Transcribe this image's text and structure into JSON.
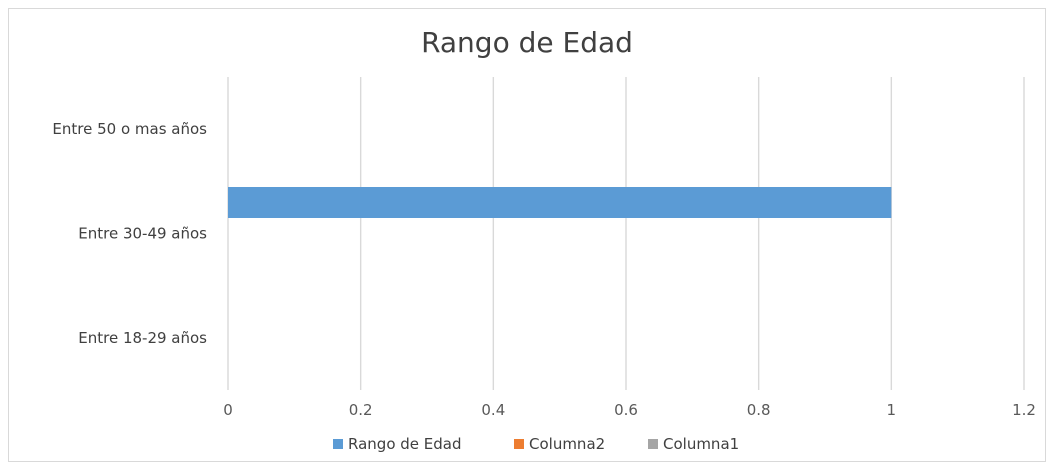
{
  "chart_data": {
    "type": "bar",
    "orientation": "horizontal",
    "title": "Rango de Edad",
    "categories": [
      "Entre 18-29 años",
      "Entre 30-49 años",
      "Entre 50 o mas años"
    ],
    "series": [
      {
        "name": "Rango de Edad",
        "values": [
          0,
          1,
          0
        ],
        "color": "#5b9bd5"
      },
      {
        "name": "Columna2",
        "values": [
          0,
          0,
          0
        ],
        "color": "#ed7d31"
      },
      {
        "name": "Columna1",
        "values": [
          0,
          0,
          0
        ],
        "color": "#a5a5a5"
      }
    ],
    "xticks": [
      "0",
      "0.2",
      "0.4",
      "0.6",
      "0.8",
      "1",
      "1.2"
    ],
    "xlim": [
      0,
      1.2
    ],
    "grid": true,
    "legend_position": "bottom"
  }
}
